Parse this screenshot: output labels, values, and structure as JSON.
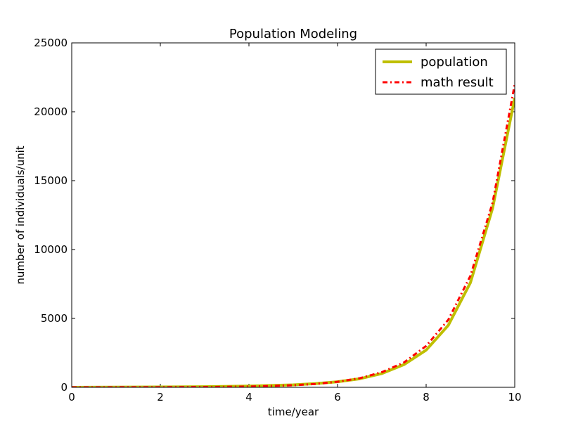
{
  "chart_data": {
    "type": "line",
    "title": "Population Modeling",
    "xlabel": "time/year",
    "ylabel": "number of individuals/unit",
    "xlim": [
      0,
      10
    ],
    "ylim": [
      0,
      25000
    ],
    "xticks": [
      "0",
      "2",
      "4",
      "6",
      "8",
      "10"
    ],
    "yticks": [
      "0",
      "5000",
      "10000",
      "15000",
      "20000",
      "25000"
    ],
    "grid": false,
    "legend_position": "top-right",
    "series": [
      {
        "name": "population",
        "color": "#bfbf00",
        "style": "solid",
        "x": [
          0,
          1,
          2,
          3,
          4,
          5,
          5.5,
          6,
          6.5,
          7,
          7.5,
          8,
          8.5,
          9,
          9.5,
          10
        ],
        "y": [
          0,
          10,
          25,
          45,
          90,
          180,
          270,
          400,
          620,
          1000,
          1650,
          2700,
          4500,
          7600,
          13000,
          21000
        ]
      },
      {
        "name": "math result",
        "color": "#ff0000",
        "style": "dashdot",
        "x": [
          0,
          1,
          2,
          3,
          4,
          5,
          5.5,
          6,
          6.5,
          7,
          7.5,
          8,
          8.5,
          9,
          9.5,
          10
        ],
        "y": [
          1,
          3,
          7,
          20,
          55,
          150,
          245,
          400,
          660,
          1100,
          1800,
          3000,
          4900,
          8100,
          13400,
          22000
        ]
      }
    ]
  }
}
